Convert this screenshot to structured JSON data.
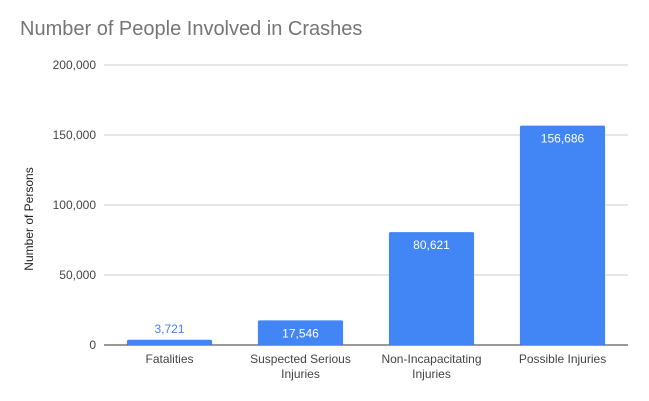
{
  "chart_data": {
    "type": "bar",
    "title": "Number of People Involved in Crashes",
    "xlabel": "",
    "ylabel": "Number of Persons",
    "categories": [
      [
        "Fatalities"
      ],
      [
        "Suspected Serious",
        "Injuries"
      ],
      [
        "Non-Incapacitating",
        "Injuries"
      ],
      [
        "Possible Injuries"
      ]
    ],
    "values": [
      3721,
      17546,
      80621,
      156686
    ],
    "value_labels": [
      "3,721",
      "17,546",
      "80,621",
      "156,686"
    ],
    "ylim": [
      0,
      200000
    ],
    "yticks": [
      0,
      50000,
      100000,
      150000,
      200000
    ],
    "ytick_labels": [
      "0",
      "50,000",
      "100,000",
      "150,000",
      "200,000"
    ],
    "grid": true,
    "legend": "none",
    "colors": {
      "bar": "#4285f4",
      "label_inside": "#ffffff",
      "label_outside": "#4285f4",
      "grid": "#cccccc",
      "baseline": "#333333"
    }
  }
}
